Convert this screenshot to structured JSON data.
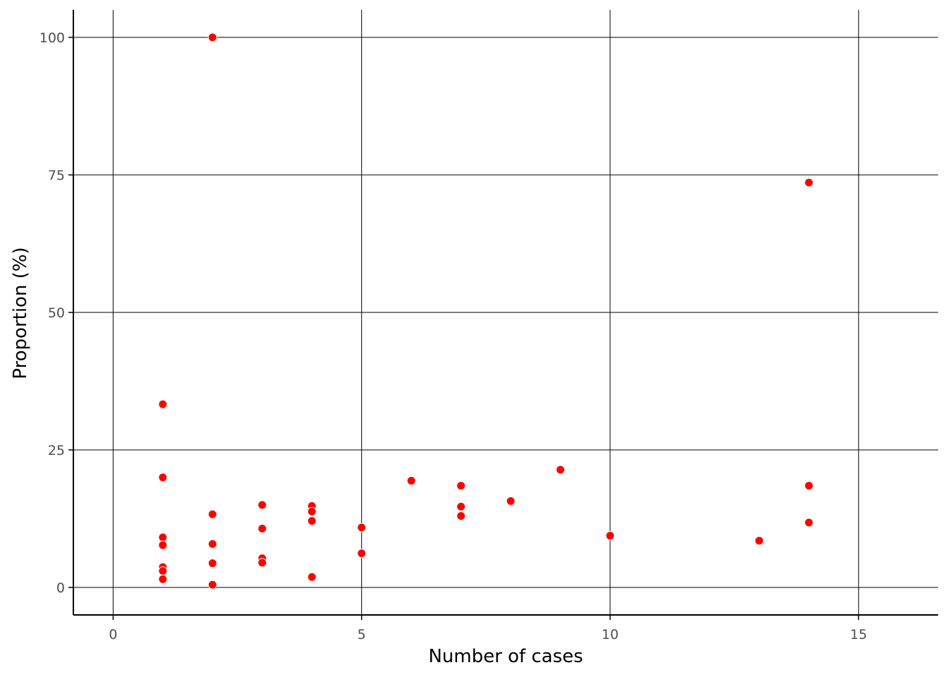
{
  "chart_data": {
    "type": "scatter",
    "title": "",
    "xlabel": "Number of cases",
    "ylabel": "Proportion (%)",
    "xlim": [
      -0.8,
      16.6
    ],
    "ylim": [
      -5,
      105
    ],
    "x_ticks": [
      0,
      5,
      10,
      15
    ],
    "y_ticks": [
      0,
      25,
      50,
      75,
      100
    ],
    "x_tick_labels": [
      "0",
      "5",
      "10",
      "15"
    ],
    "y_tick_labels": [
      "0",
      "25",
      "50",
      "75",
      "100"
    ],
    "grid": true,
    "point_color": "#ff0000",
    "series": [
      {
        "points": [
          {
            "x": 1,
            "y": 33.3
          },
          {
            "x": 1,
            "y": 20.0
          },
          {
            "x": 1,
            "y": 9.1
          },
          {
            "x": 1,
            "y": 7.7
          },
          {
            "x": 1,
            "y": 3.7
          },
          {
            "x": 1,
            "y": 3.0
          },
          {
            "x": 1,
            "y": 1.5
          },
          {
            "x": 2,
            "y": 100.0
          },
          {
            "x": 2,
            "y": 13.3
          },
          {
            "x": 2,
            "y": 7.9
          },
          {
            "x": 2,
            "y": 4.4
          },
          {
            "x": 2,
            "y": 0.5
          },
          {
            "x": 3,
            "y": 15.0
          },
          {
            "x": 3,
            "y": 10.7
          },
          {
            "x": 3,
            "y": 5.3
          },
          {
            "x": 3,
            "y": 4.5
          },
          {
            "x": 4,
            "y": 14.8
          },
          {
            "x": 4,
            "y": 13.8
          },
          {
            "x": 4,
            "y": 12.1
          },
          {
            "x": 4,
            "y": 1.9
          },
          {
            "x": 5,
            "y": 10.9
          },
          {
            "x": 5,
            "y": 6.2
          },
          {
            "x": 6,
            "y": 19.4
          },
          {
            "x": 7,
            "y": 18.5
          },
          {
            "x": 7,
            "y": 14.7
          },
          {
            "x": 7,
            "y": 13.0
          },
          {
            "x": 8,
            "y": 15.7
          },
          {
            "x": 9,
            "y": 21.4
          },
          {
            "x": 10,
            "y": 9.4
          },
          {
            "x": 13,
            "y": 8.5
          },
          {
            "x": 14,
            "y": 73.6
          },
          {
            "x": 14,
            "y": 18.5
          },
          {
            "x": 14,
            "y": 11.8
          }
        ]
      }
    ]
  }
}
